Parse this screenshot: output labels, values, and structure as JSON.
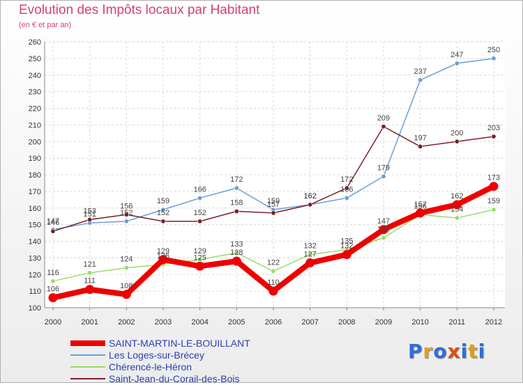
{
  "title": "Evolution des Impôts locaux par Habitant",
  "subtitle": "(en € et par an)",
  "logo": {
    "text": "Proxiti",
    "colors": [
      "#2f6fd6",
      "#e0a020",
      "#2f6fd6",
      "#e04a1a",
      "#2f6fd6",
      "#d6a020",
      "#2f6fd6"
    ]
  },
  "chart_data": {
    "type": "line",
    "title": "Evolution des Impôts locaux par Habitant",
    "subtitle": "(en € et par an)",
    "xlabel": "",
    "ylabel": "",
    "x": [
      "2000",
      "2001",
      "2002",
      "2003",
      "2004",
      "2005",
      "2006",
      "2007",
      "2008",
      "2009",
      "2010",
      "2011",
      "2012"
    ],
    "ylim": [
      100,
      260
    ],
    "yticks": [
      "100",
      "110",
      "120",
      "130",
      "140",
      "150",
      "160",
      "170",
      "180",
      "190",
      "200",
      "210",
      "220",
      "230",
      "240",
      "250",
      "260"
    ],
    "grid": true,
    "legend_position": "bottom-left",
    "series": [
      {
        "name": "SAINT-MARTIN-LE-BOUILLANT",
        "color": "#ee0000",
        "values": [
          106,
          111,
          108,
          129,
          125,
          128,
          110,
          127,
          132,
          147,
          157,
          162,
          173
        ]
      },
      {
        "name": "Les Loges-sur-Brécey",
        "color": "#6a9fd4",
        "values": [
          147,
          151,
          152,
          159,
          166,
          172,
          159,
          162,
          166,
          179,
          237,
          247,
          250
        ]
      },
      {
        "name": "Chérencé-le-Héron",
        "color": "#99dd66",
        "values": [
          116,
          121,
          124,
          126,
          129,
          133,
          122,
          132,
          135,
          142,
          156,
          154,
          159
        ]
      },
      {
        "name": "Saint-Jean-du-Corail-des-Bois",
        "color": "#7a1f2a",
        "values": [
          146,
          153,
          156,
          152,
          152,
          158,
          157,
          162,
          172,
          209,
          197,
          200,
          203
        ]
      }
    ],
    "point_labels": [
      [
        "106",
        "111",
        "108",
        "129",
        "125",
        "128",
        "110",
        "127",
        "132",
        "147",
        "157",
        "162",
        "173"
      ],
      [
        "147",
        "151",
        "152",
        "159",
        "166",
        "172",
        "159",
        "162",
        "166",
        "179",
        "237",
        "247",
        "250"
      ],
      [
        "116",
        "121",
        "124",
        "126",
        "129",
        "133",
        "122",
        "132",
        "135",
        "142",
        "156",
        "154",
        "159"
      ],
      [
        "146",
        "153",
        "156",
        "152",
        "152",
        "158",
        "157",
        "162",
        "172",
        "209",
        "197",
        "200",
        "203"
      ]
    ]
  }
}
